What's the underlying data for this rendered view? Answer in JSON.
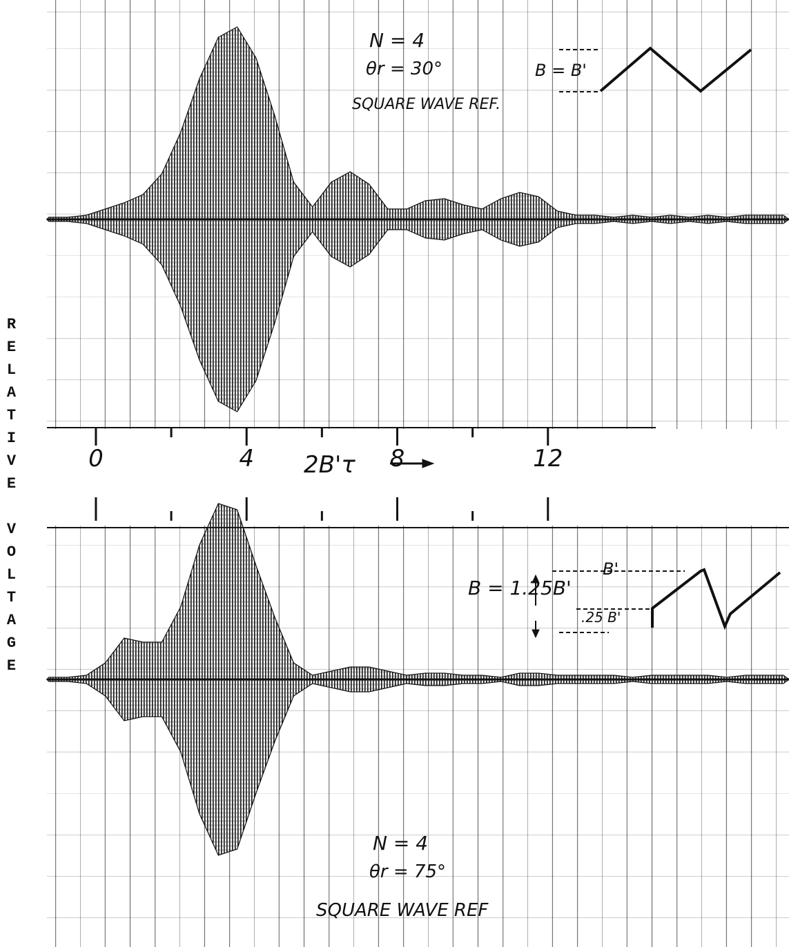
{
  "chart_data": [
    {
      "type": "envelope",
      "xlabel": "2B'τ",
      "ylabel": "RELATIVE VOLTAGE",
      "annotations": [
        "N = 4",
        "θr = 30°",
        "SQUARE WAVE REF.",
        "B = B'"
      ],
      "x": [
        -1.25,
        -0.75,
        -0.25,
        0.25,
        0.75,
        1.25,
        1.75,
        2.25,
        2.75,
        3.25,
        3.75,
        4.25,
        4.75,
        5.25,
        5.75,
        6.25,
        6.75,
        7.25,
        7.75,
        8.25,
        8.75,
        9.25,
        9.75,
        10.25,
        10.75,
        11.25,
        11.75,
        12.25,
        12.75,
        13.25,
        13.75,
        14.25,
        14.75,
        15.25,
        15.75,
        16.25,
        16.75,
        17.25,
        17.75,
        18.25
      ],
      "series": [
        {
          "color": "#111111",
          "values": [
            0.01,
            0.01,
            0.02,
            0.05,
            0.08,
            0.12,
            0.22,
            0.42,
            0.68,
            0.88,
            0.93,
            0.78,
            0.5,
            0.18,
            0.06,
            0.18,
            0.23,
            0.17,
            0.05,
            0.05,
            0.09,
            0.1,
            0.07,
            0.05,
            0.1,
            0.13,
            0.11,
            0.04,
            0.02,
            0.02,
            0.01,
            0.02,
            0.01,
            0.02,
            0.01,
            0.02,
            0.01,
            0.02,
            0.02,
            0.02
          ]
        }
      ],
      "xlim": [
        -1.3,
        18.4
      ],
      "ylim": [
        -1,
        1
      ],
      "xticks": [
        0,
        4,
        8,
        12
      ],
      "xminor_ticks": [
        2,
        6,
        10
      ]
    },
    {
      "type": "envelope",
      "annotations": [
        "B = 1.25B'",
        "B'",
        ".25 B'",
        "N = 4",
        "θr = 75°",
        "SQUARE WAVE REF"
      ],
      "x": [
        -1.25,
        -0.75,
        -0.25,
        0.25,
        0.75,
        1.25,
        1.75,
        2.25,
        2.75,
        3.25,
        3.75,
        4.25,
        4.75,
        5.25,
        5.75,
        6.25,
        6.75,
        7.25,
        7.75,
        8.25,
        8.75,
        9.25,
        9.75,
        10.25,
        10.75,
        11.25,
        11.75,
        12.25,
        12.75,
        13.25,
        13.75,
        14.25,
        14.75,
        15.25,
        15.75,
        16.25,
        16.75,
        17.25,
        17.75,
        18.25
      ],
      "series": [
        {
          "color": "#111111",
          "values": [
            0.01,
            0.01,
            0.02,
            0.08,
            0.2,
            0.18,
            0.18,
            0.35,
            0.65,
            0.85,
            0.82,
            0.55,
            0.3,
            0.08,
            0.02,
            0.04,
            0.06,
            0.06,
            0.04,
            0.02,
            0.03,
            0.03,
            0.02,
            0.02,
            0.01,
            0.03,
            0.03,
            0.02,
            0.02,
            0.02,
            0.02,
            0.01,
            0.02,
            0.02,
            0.02,
            0.02,
            0.01,
            0.02,
            0.02,
            0.02
          ]
        }
      ],
      "xlim": [
        -1.3,
        18.4
      ],
      "ylim": [
        -1,
        1
      ],
      "xtick_marks": [
        0,
        2,
        4,
        6,
        8,
        10,
        12
      ]
    }
  ]
}
